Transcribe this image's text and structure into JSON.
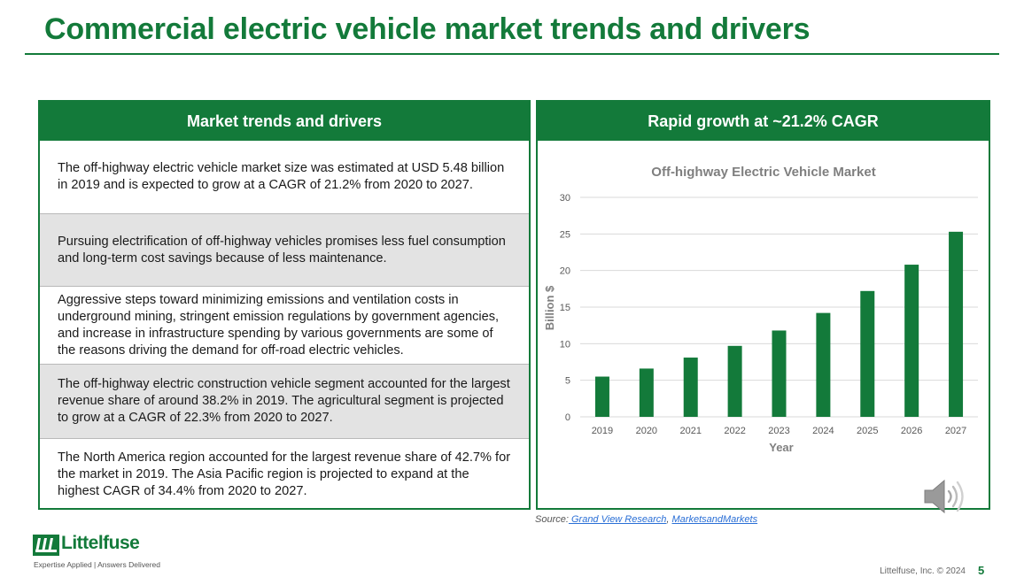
{
  "slide": {
    "title": "Commercial electric vehicle market trends and drivers",
    "page_number": "5",
    "footer": "Littelfuse, Inc. © 2024"
  },
  "left_panel": {
    "header": "Market trends and drivers",
    "items": [
      {
        "text": "The off-highway electric vehicle market size was estimated at USD 5.48 billion in 2019 and is expected to grow at a CAGR of 21.2% from 2020 to 2027.",
        "shaded": false
      },
      {
        "text": "Pursuing electrification of off-highway vehicles promises less fuel consumption and long-term cost savings because of less maintenance.",
        "shaded": true
      },
      {
        "text": "Aggressive steps toward minimizing emissions and ventilation costs in underground mining, stringent emission regulations by government agencies, and increase in infrastructure spending by various governments are some of the reasons driving the demand for off-road electric vehicles.",
        "shaded": false
      },
      {
        "text": "The off-highway electric construction vehicle segment accounted for the largest revenue share of around 38.2% in 2019. The agricultural segment is projected to grow at a CAGR of 22.3% from 2020 to 2027.",
        "shaded": true
      },
      {
        "text": "The North America region accounted for the largest revenue share of 42.7% for the market in 2019. The Asia Pacific region is projected to expand at the highest CAGR of 34.4% from 2020 to 2027.",
        "shaded": false
      }
    ]
  },
  "right_panel": {
    "header": "Rapid growth at ~21.2% CAGR"
  },
  "chart_data": {
    "type": "bar",
    "title": "Off-highway Electric Vehicle Market",
    "xlabel": "Year",
    "ylabel": "Billion $",
    "categories": [
      "2019",
      "2020",
      "2021",
      "2022",
      "2023",
      "2024",
      "2025",
      "2026",
      "2027"
    ],
    "values": [
      5.5,
      6.6,
      8.1,
      9.7,
      11.8,
      14.2,
      17.2,
      20.8,
      25.3
    ],
    "ylim": [
      0,
      30
    ],
    "yticks": [
      0,
      5,
      10,
      15,
      20,
      25,
      30
    ],
    "grid": true,
    "bar_color": "#137a3a"
  },
  "source": {
    "label": "Source:",
    "links": [
      " Grand View Research",
      "MarketsandMarkets"
    ],
    "separator": ", "
  },
  "logo": {
    "name": "Littelfuse",
    "tagline": "Expertise Applied | Answers Delivered"
  },
  "icons": {
    "speaker": "speaker-icon",
    "logo_mark": "littelfuse-logo-icon"
  },
  "colors": {
    "brand_green": "#137a3a",
    "shaded_row": "#e3e3e3",
    "link_blue": "#2a6fd6"
  }
}
